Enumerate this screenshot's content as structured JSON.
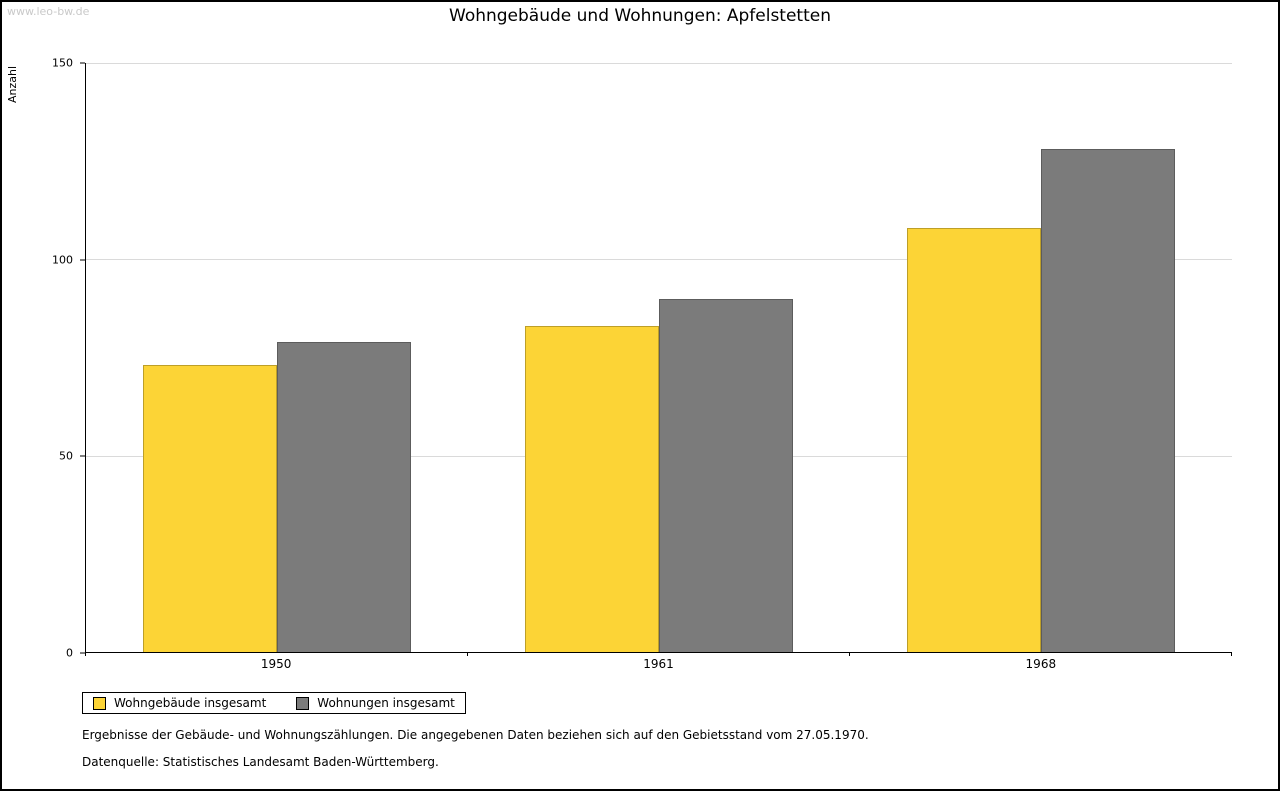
{
  "page": {
    "watermark": "www.leo-bw.de",
    "title": "Wohngebäude und Wohnungen: Apfelstetten",
    "footnote_gebietsstand": "Ergebnisse der Gebäude- und Wohnungszählungen. Die angegebenen Daten beziehen sich auf den Gebietsstand vom 27.05.1970.",
    "footnote_datenquelle": "Datenquelle: Statistisches Landesamt Baden-Württemberg."
  },
  "chart_data": {
    "type": "bar",
    "title": "Wohngebäude und Wohnungen: Apfelstetten",
    "xlabel": "",
    "ylabel": "Anzahl",
    "categories": [
      "1950",
      "1961",
      "1968"
    ],
    "series": [
      {
        "name": "Wohngebäude insgesamt",
        "color": "#FCD436",
        "values": [
          73,
          83,
          108
        ]
      },
      {
        "name": "Wohnungen insgesamt",
        "color": "#7B7B7B",
        "values": [
          79,
          90,
          128
        ]
      }
    ],
    "ylim": [
      0,
      150
    ],
    "yticks": [
      0,
      50,
      100,
      150
    ],
    "grid": true,
    "legend_position": "bottom-left"
  }
}
